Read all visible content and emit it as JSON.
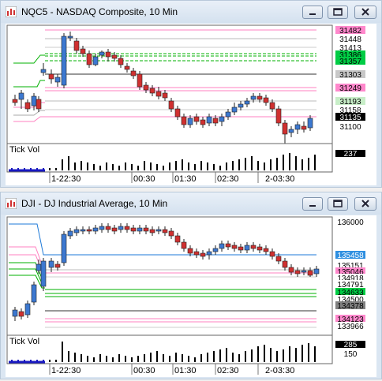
{
  "windows": [
    {
      "title": "NQC5 - NASDAQ Composite, 10 Min",
      "indicator_label": "Tick Vol",
      "volume_value": "237",
      "time_labels": [
        "1-22:30",
        "00:30",
        "01:30",
        "02:30",
        "2-03:30"
      ],
      "price_labels": [
        {
          "text": "31482",
          "bg": "#ff88cc",
          "fg": "#000000"
        },
        {
          "text": "31448",
          "bg": "#ffffff",
          "fg": "#000000"
        },
        {
          "text": "31413",
          "bg": "#ffffff",
          "fg": "#000000"
        },
        {
          "text": "31386",
          "bg": "#00cc44",
          "fg": "#000000"
        },
        {
          "text": "31357",
          "bg": "#00cc44",
          "fg": "#000000"
        },
        {
          "text": "31303",
          "bg": "#c8c8c8",
          "fg": "#000000"
        },
        {
          "text": "31249",
          "bg": "#ff88cc",
          "fg": "#000000"
        },
        {
          "text": "31193",
          "bg": "#c8eec8",
          "fg": "#000000"
        },
        {
          "text": "31158",
          "bg": "#ffffff",
          "fg": "#000000"
        },
        {
          "text": "31135",
          "bg": "#000000",
          "fg": "#ffffff"
        },
        {
          "text": "31100",
          "bg": "#ffffff",
          "fg": "#000000"
        }
      ]
    },
    {
      "title": "DJI - DJ Industrial Average, 10 Min",
      "indicator_label": "Tick Vol",
      "volume_value": "285",
      "volume_scale": "150",
      "time_labels": [
        "1-22:30",
        "00:30",
        "01:30",
        "02:30",
        "2-03:30"
      ],
      "price_labels": [
        {
          "text": "136000",
          "bg": "#ffffff",
          "fg": "#000000"
        },
        {
          "text": "135458",
          "bg": "#2f8fe0",
          "fg": "#ffffff"
        },
        {
          "text": "135151",
          "bg": "#ffffff",
          "fg": "#000000"
        },
        {
          "text": "135046",
          "bg": "#ff88cc",
          "fg": "#000000"
        },
        {
          "text": "134918",
          "bg": "#ffffff",
          "fg": "#000000"
        },
        {
          "text": "134791",
          "bg": "#ffffff",
          "fg": "#000000"
        },
        {
          "text": "134633",
          "bg": "#00cc44",
          "fg": "#000000"
        },
        {
          "text": "134500",
          "bg": "#ffffff",
          "fg": "#000000"
        },
        {
          "text": "134378",
          "bg": "#808080",
          "fg": "#000000"
        },
        {
          "text": "134123",
          "bg": "#ff88cc",
          "fg": "#000000"
        },
        {
          "text": "133966",
          "bg": "#ffffff",
          "fg": "#000000"
        }
      ]
    }
  ],
  "colors": {
    "up": "#3c78d0",
    "down": "#d03030",
    "volume": "#000000",
    "volume_recent": "#1818c0",
    "accent_green": "#00b000",
    "accent_pink": "#ff80c0",
    "accent_blue": "#1e7ad8"
  }
}
